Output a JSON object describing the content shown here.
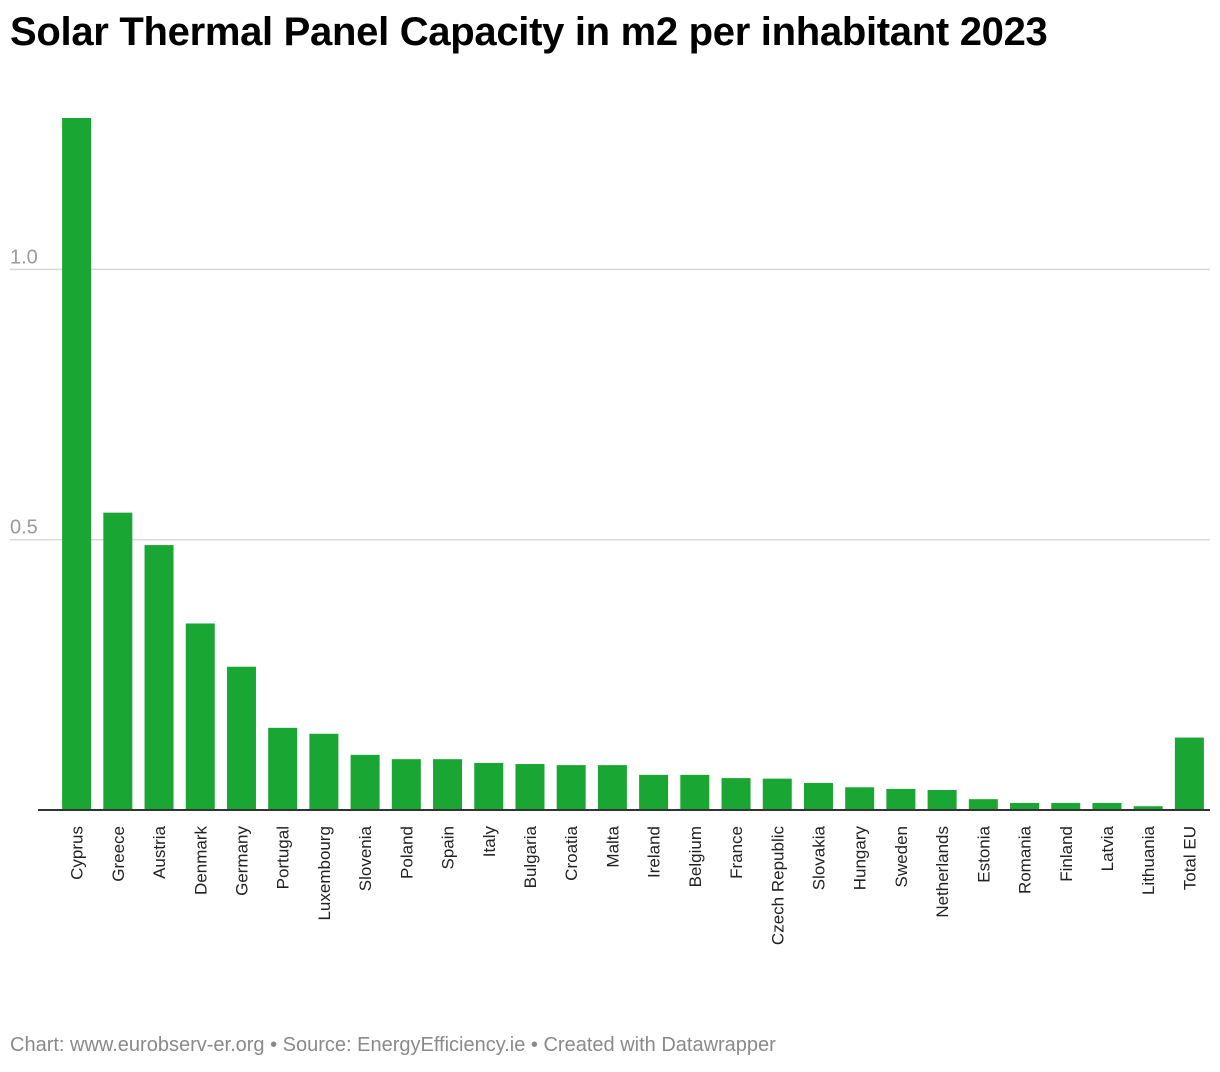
{
  "chart_data": {
    "type": "bar",
    "title": "Solar Thermal Panel Capacity in m2 per inhabitant 2023",
    "xlabel": "",
    "ylabel": "",
    "ylim": [
      0,
      1.28
    ],
    "yticks": [
      "0.5",
      "1.0"
    ],
    "ytick_values": [
      0.5,
      1.0
    ],
    "grid": true,
    "bar_color": "#1aa632",
    "categories": [
      "Cyprus",
      "Greece",
      "Austria",
      "Denmark",
      "Germany",
      "Portugal",
      "Luxembourg",
      "Slovenia",
      "Poland",
      "Spain",
      "Italy",
      "Bulgaria",
      "Croatia",
      "Malta",
      "Ireland",
      "Belgium",
      "France",
      "Czech Republic",
      "Slovakia",
      "Hungary",
      "Sweden",
      "Netherlands",
      "Estonia",
      "Romania",
      "Finland",
      "Latvia",
      "Lithuania",
      "Total EU"
    ],
    "values": [
      1.28,
      0.55,
      0.49,
      0.345,
      0.265,
      0.152,
      0.141,
      0.102,
      0.094,
      0.094,
      0.087,
      0.085,
      0.083,
      0.083,
      0.065,
      0.065,
      0.059,
      0.058,
      0.05,
      0.042,
      0.039,
      0.037,
      0.02,
      0.013,
      0.013,
      0.013,
      0.007,
      0.134
    ]
  },
  "footer": {
    "text": "Chart: www.eurobserv-er.org • Source: EnergyEfficiency.ie • Created with Datawrapper"
  }
}
